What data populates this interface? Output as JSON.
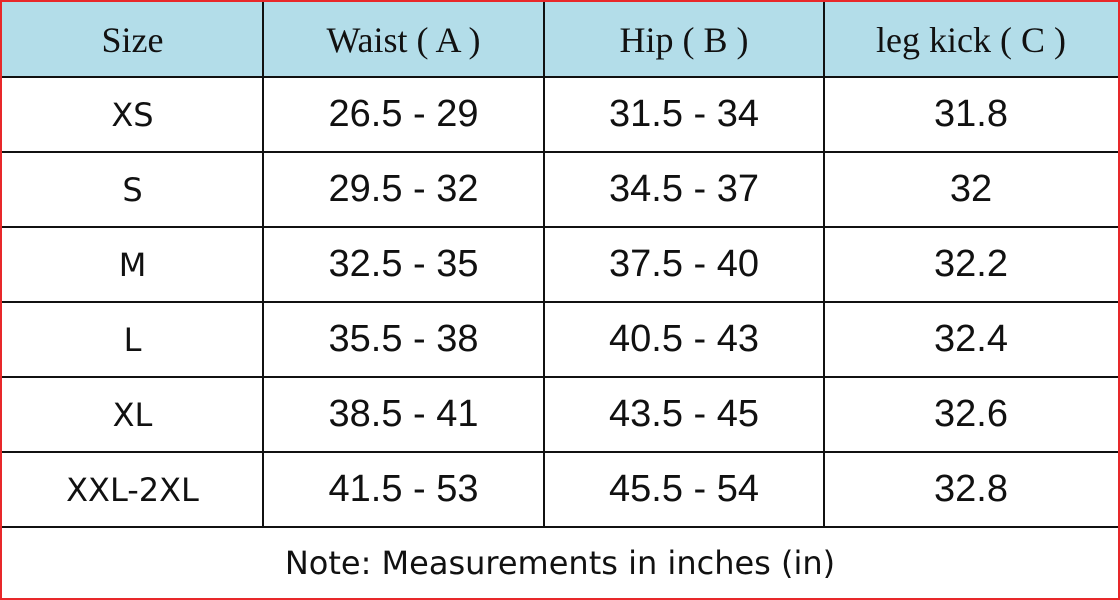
{
  "table": {
    "header": [
      "Size",
      "Waist ( A )",
      "Hip ( B )",
      "leg kick ( C )"
    ],
    "rows": [
      [
        "XS",
        "26.5 - 29",
        "31.5 - 34",
        "31.8"
      ],
      [
        "S",
        "29.5 - 32",
        "34.5 - 37",
        "32"
      ],
      [
        "M",
        "32.5 - 35",
        "37.5 - 40",
        "32.2"
      ],
      [
        "L",
        "35.5 - 38",
        "40.5 - 43",
        "32.4"
      ],
      [
        "XL",
        "38.5 - 41",
        "43.5 - 45",
        "32.6"
      ],
      [
        "XXL-2XL",
        "41.5 - 53",
        "45.5 - 54",
        "32.8"
      ]
    ],
    "note": "Note: Measurements in inches (in)"
  }
}
